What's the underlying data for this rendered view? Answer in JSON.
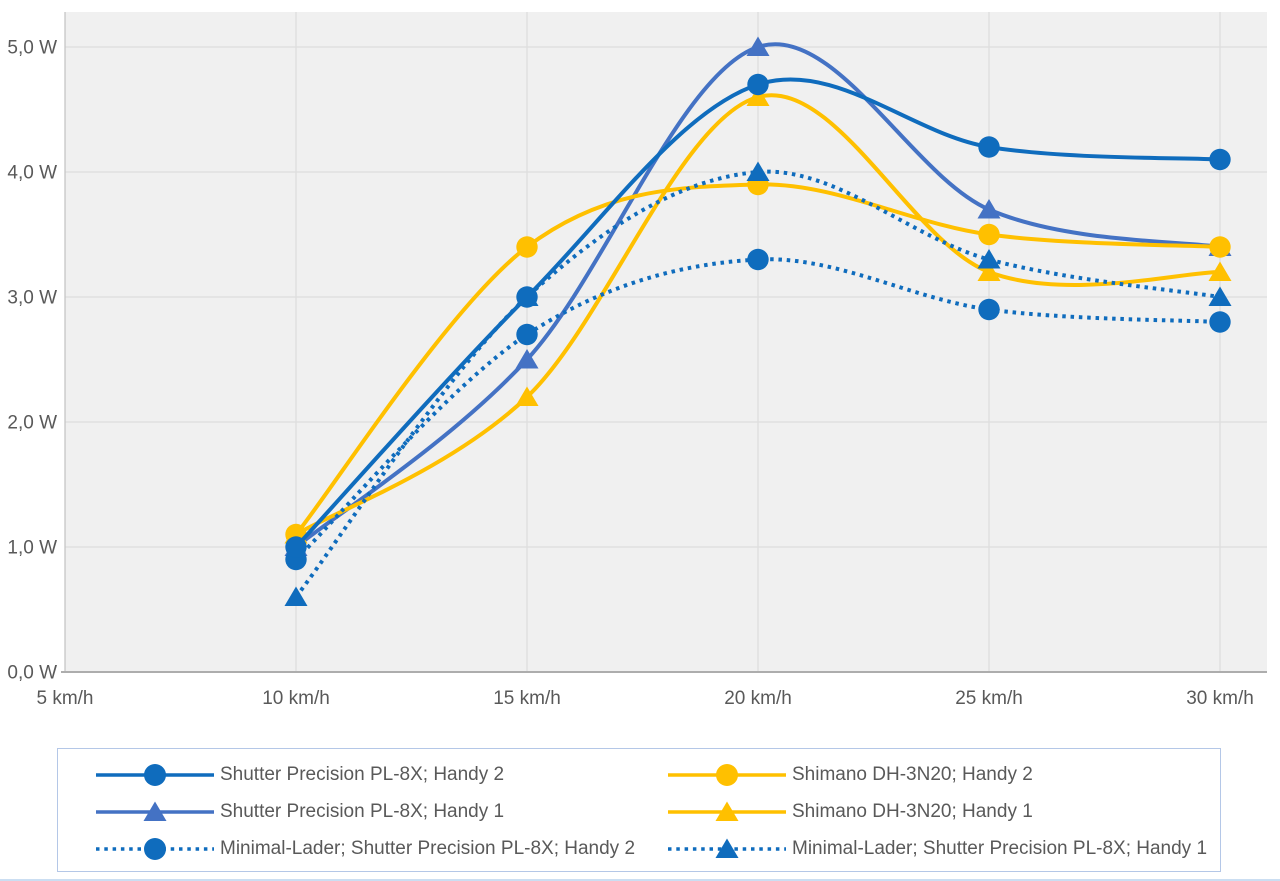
{
  "chart_data": {
    "type": "line",
    "title": "",
    "smooth": true,
    "grid": true,
    "legend_position": "bottom",
    "x_unit": "km/h",
    "y_unit": "W",
    "x": [
      10,
      15,
      20,
      25,
      30
    ],
    "xlim": [
      5,
      31
    ],
    "ylim": [
      0,
      5.28
    ],
    "x_tick_values": [
      5,
      10,
      15,
      20,
      25,
      30
    ],
    "x_tick_labels": [
      "5 km/h",
      "10 km/h",
      "15 km/h",
      "20 km/h",
      "25 km/h",
      "30 km/h"
    ],
    "y_tick_values": [
      0,
      1,
      2,
      3,
      4,
      5
    ],
    "y_tick_labels": [
      "0,0 W",
      "1,0 W",
      "2,0 W",
      "3,0 W",
      "4,0 W",
      "5,0 W"
    ],
    "series": [
      {
        "name": "Shutter Precision PL-8X; Handy 2",
        "color": "#0F6CBD",
        "marker": "circle",
        "dash": "solid",
        "values": [
          1.0,
          3.0,
          4.7,
          4.2,
          4.1
        ]
      },
      {
        "name": "Shutter Precision PL-8X; Handy 1",
        "color": "#4472C4",
        "marker": "triangle",
        "dash": "solid",
        "values": [
          1.0,
          2.5,
          5.0,
          3.7,
          3.4
        ]
      },
      {
        "name": "Minimal-Lader; Shutter Precision PL-8X; Handy 2",
        "color": "#0F6CBD",
        "marker": "circle",
        "dash": "dotted",
        "values": [
          0.9,
          2.7,
          3.3,
          2.9,
          2.8
        ]
      },
      {
        "name": "Shimano DH-3N20; Handy 2",
        "color": "#FFC000",
        "marker": "circle",
        "dash": "solid",
        "values": [
          1.1,
          3.4,
          3.9,
          3.5,
          3.4
        ]
      },
      {
        "name": "Shimano DH-3N20; Handy 1",
        "color": "#FFC000",
        "marker": "triangle",
        "dash": "solid",
        "values": [
          1.1,
          2.2,
          4.6,
          3.2,
          3.2
        ]
      },
      {
        "name": "Minimal-Lader; Shutter Precision PL-8X; Handy 1",
        "color": "#0F6CBD",
        "marker": "triangle",
        "dash": "dotted",
        "values": [
          0.6,
          3.0,
          4.0,
          3.3,
          3.0
        ]
      }
    ],
    "draw_order": [
      1,
      3,
      4,
      2,
      5,
      0
    ],
    "legend_columns": [
      [
        0,
        1,
        2
      ],
      [
        3,
        4,
        5
      ]
    ],
    "colors": {
      "plot_background": "#F0F0F0",
      "gridline": "#DDDDDD",
      "axis_line_x": "#ADADAD",
      "axis_line_y": "#C6C6C6",
      "tick_text": "#595959",
      "legend_border": "#B4C7E7",
      "page_background": "#FFFFFF"
    }
  }
}
